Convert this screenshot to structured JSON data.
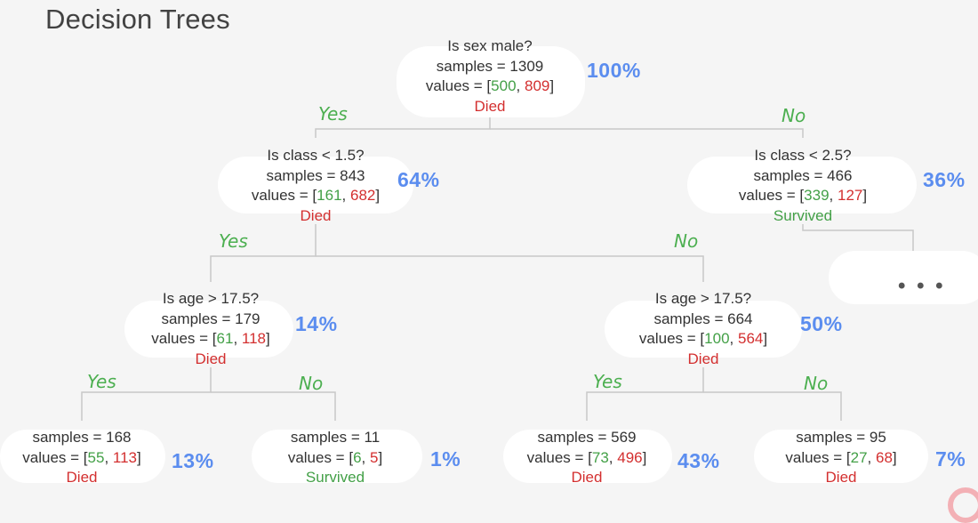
{
  "title": "Decision Trees",
  "nodes": {
    "root": {
      "question": "Is sex male?",
      "samples": "samples = 1309",
      "v_pre": "values = [",
      "v_a": "500",
      "v_b": "809",
      "class": "Died",
      "pct": "100%"
    },
    "class_lt_1_5": {
      "question": "Is class < 1.5?",
      "samples": "samples = 843",
      "v_pre": "values = [",
      "v_a": "161",
      "v_b": "682",
      "class": "Died",
      "pct": "64%"
    },
    "class_lt_2_5": {
      "question": "Is class < 2.5?",
      "samples": "samples = 466",
      "v_pre": "values = [",
      "v_a": "339",
      "v_b": "127",
      "class": "Survived",
      "pct": "36%"
    },
    "age_a": {
      "question": "Is age > 17.5?",
      "samples": "samples = 179",
      "v_pre": "values = [",
      "v_a": "61",
      "v_b": "118",
      "class": "Died",
      "pct": "14%"
    },
    "age_b": {
      "question": "Is age > 17.5?",
      "samples": "samples = 664",
      "v_pre": "values = [",
      "v_a": "100",
      "v_b": "564",
      "class": "Died",
      "pct": "50%"
    },
    "leaf1": {
      "samples": "samples = 168",
      "v_pre": "values = [",
      "v_a": "55",
      "v_b": "113",
      "class": "Died",
      "pct": "13%"
    },
    "leaf2": {
      "samples": "samples = 11",
      "v_pre": "values = [",
      "v_a": "6",
      "v_b": "5",
      "class": "Survived",
      "pct": "1%"
    },
    "leaf3": {
      "samples": "samples = 569",
      "v_pre": "values = [",
      "v_a": "73",
      "v_b": "496",
      "class": "Died",
      "pct": "43%"
    },
    "leaf4": {
      "samples": "samples = 95",
      "v_pre": "values = [",
      "v_a": "27",
      "v_b": "68",
      "class": "Died",
      "pct": "7%"
    }
  },
  "branch_labels": {
    "yes": "Yes",
    "no": "No"
  },
  "ellipsis": "• • •",
  "colors": {
    "survived": "#43a047",
    "died": "#d32f2f",
    "percent": "#5b8def",
    "branch": "#4caf50"
  }
}
